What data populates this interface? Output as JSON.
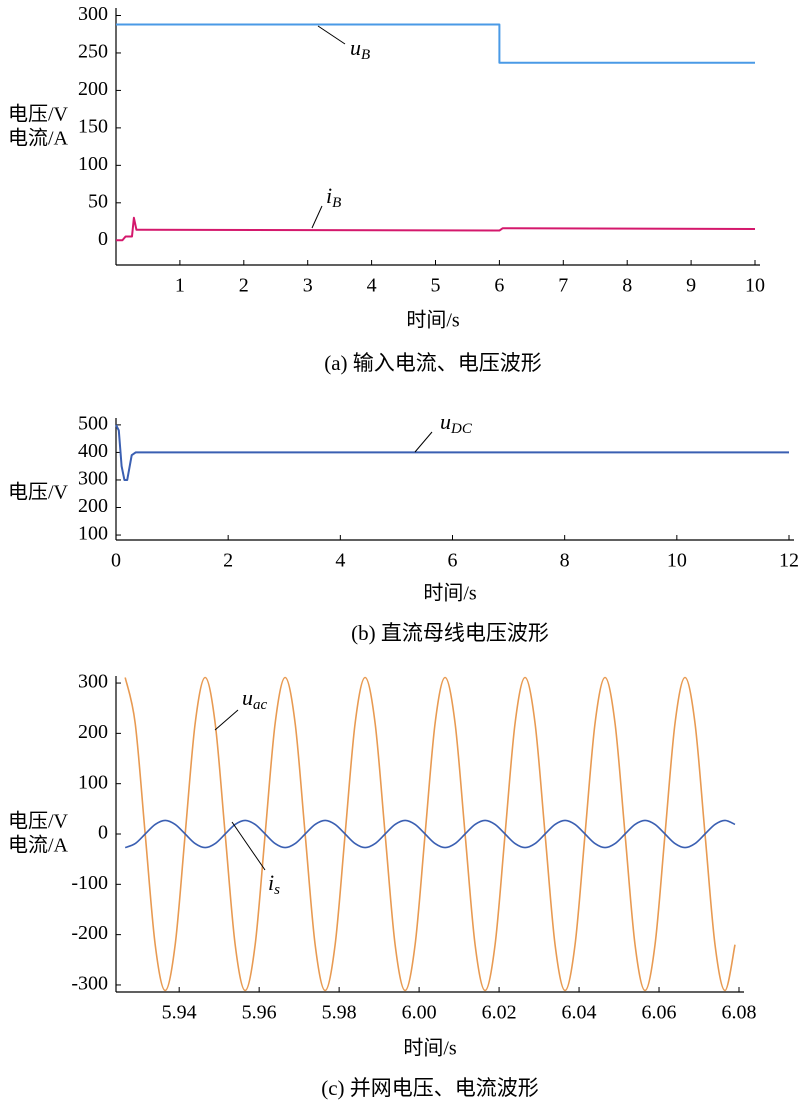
{
  "chart_data": [
    {
      "type": "line",
      "caption": "(a) 输入电流、电压波形",
      "xlabel": "时间/s",
      "ylabel": [
        "电压/V",
        "电流/A"
      ],
      "xlim": [
        0,
        10
      ],
      "xticks": [
        1,
        2,
        3,
        4,
        5,
        6,
        7,
        8,
        9,
        10
      ],
      "ylim": [
        -33,
        310
      ],
      "yticks": [
        0,
        50,
        100,
        150,
        200,
        250,
        300
      ],
      "series": [
        {
          "color": "#4a9ae6",
          "x": [
            0,
            6,
            6,
            10
          ],
          "values": [
            288,
            288,
            237,
            237
          ]
        },
        {
          "color": "#d4186c",
          "x": [
            0,
            0.1,
            0.15,
            0.25,
            0.28,
            0.32,
            0.4,
            6,
            6.05,
            10
          ],
          "values": [
            0,
            0,
            5,
            5,
            30,
            14,
            14,
            13,
            16,
            15
          ]
        }
      ],
      "annotations": [
        {
          "text": "u",
          "sub": "B"
        },
        {
          "text": "i",
          "sub": "B"
        }
      ]
    },
    {
      "type": "line",
      "caption": "(b) 直流母线电压波形",
      "xlabel": "时间/s",
      "ylabel": [
        "电压/V"
      ],
      "xlim": [
        0,
        12
      ],
      "xticks": [
        0,
        2,
        4,
        6,
        8,
        10,
        12
      ],
      "ylim": [
        82,
        525
      ],
      "yticks": [
        100,
        200,
        300,
        400,
        500
      ],
      "series": [
        {
          "color": "#3a5fb2",
          "x": [
            0,
            0.05,
            0.1,
            0.15,
            0.2,
            0.28,
            0.35,
            12
          ],
          "values": [
            500,
            480,
            350,
            300,
            300,
            390,
            400,
            400
          ]
        }
      ],
      "annotations": [
        {
          "text": "u",
          "sub": "DC"
        }
      ]
    },
    {
      "type": "line",
      "caption": "(c) 并网电压、电流波形",
      "xlabel": "时间/s",
      "ylabel": [
        "电压/V",
        "电流/A"
      ],
      "xlim": [
        5.9242,
        6.08
      ],
      "xticks": [
        5.94,
        5.96,
        5.98,
        {
          "value": 6,
          "label": "6.00"
        },
        6.02,
        6.04,
        6.06,
        6.08
      ],
      "ylim": [
        -314,
        314
      ],
      "yticks": [
        -300,
        -200,
        -100,
        0,
        100,
        200,
        300
      ],
      "x": [
        5.9265,
        5.929,
        5.9315,
        5.934,
        5.9365,
        5.939,
        5.9415,
        5.944,
        5.9465,
        5.949,
        5.9515,
        5.954,
        5.9565,
        5.959,
        5.9615,
        5.964,
        5.9665,
        5.969,
        5.9715,
        5.974,
        5.9765,
        5.979,
        5.9815,
        5.984,
        5.9865,
        5.989,
        5.9915,
        5.994,
        5.9965,
        5.999,
        6.0015,
        6.004,
        6.0065,
        6.009,
        6.0115,
        6.014,
        6.0165,
        6.019,
        6.0215,
        6.024,
        6.0265,
        6.029,
        6.0315,
        6.034,
        6.0365,
        6.039,
        6.0415,
        6.044,
        6.0465,
        6.049,
        6.0515,
        6.054,
        6.0565,
        6.059,
        6.0615,
        6.064,
        6.0665,
        6.069,
        6.0715,
        6.074,
        6.0765,
        6.079
      ],
      "series": [
        {
          "color": "#e89a52",
          "values": [
            311,
            220,
            0,
            -220,
            -311,
            -220,
            0,
            220,
            311,
            220,
            0,
            -220,
            -311,
            -220,
            0,
            220,
            311,
            220,
            0,
            -220,
            -311,
            -220,
            0,
            220,
            311,
            220,
            0,
            -220,
            -311,
            -220,
            0,
            220,
            311,
            220,
            0,
            -220,
            -311,
            -220,
            0,
            220,
            311,
            220,
            0,
            -220,
            -311,
            -220,
            0,
            220,
            311,
            220,
            0,
            -220,
            -311,
            -220,
            0,
            220,
            311,
            220,
            0,
            -220,
            -311,
            -220
          ]
        },
        {
          "color": "#3a5fb2",
          "values": [
            -27,
            -19,
            0,
            19,
            27,
            19,
            0,
            -19,
            -27,
            -19,
            0,
            19,
            27,
            19,
            0,
            -19,
            -27,
            -19,
            0,
            19,
            27,
            19,
            0,
            -19,
            -27,
            -19,
            0,
            19,
            27,
            19,
            0,
            -19,
            -27,
            -19,
            0,
            19,
            27,
            19,
            0,
            -19,
            -27,
            -19,
            0,
            19,
            27,
            19,
            0,
            -19,
            -27,
            -19,
            0,
            19,
            27,
            19,
            0,
            -19,
            -27,
            -19,
            0,
            19,
            27,
            19
          ]
        }
      ],
      "annotations": [
        {
          "text": "u",
          "sub": "ac"
        },
        {
          "text": "i",
          "sub": "s"
        }
      ]
    }
  ]
}
